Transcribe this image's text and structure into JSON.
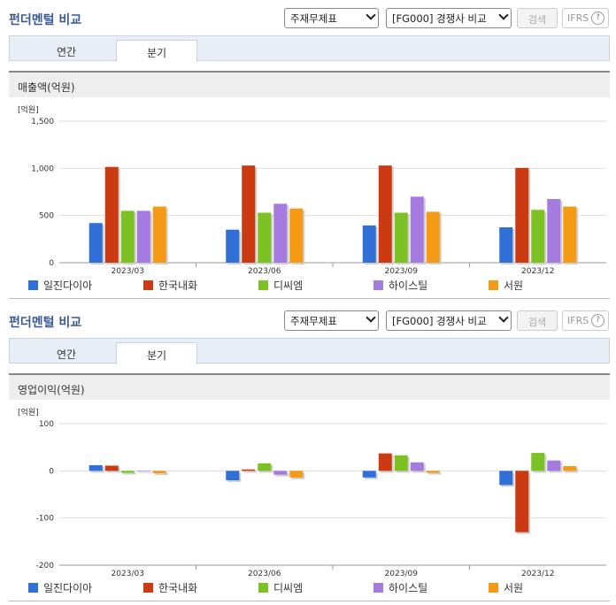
{
  "sections": [
    {
      "title": "펀더멘털 비교",
      "select1": "주재무제표",
      "select2": "[FG000] 경쟁사 비교",
      "search_label": "검색",
      "ifrs_label": "IFRS",
      "help_label": "?",
      "tabs": [
        "연간",
        "분기"
      ],
      "metric_title": "매출액(억원)"
    },
    {
      "title": "펀더멘털 비교",
      "select1": "주재무제표",
      "select2": "[FG000] 경쟁사 비교",
      "search_label": "검색",
      "ifrs_label": "IFRS",
      "help_label": "?",
      "tabs": [
        "연간",
        "분기"
      ],
      "metric_title": "영업이익(억원)"
    }
  ],
  "colors": {
    "series": [
      "#2f6fd6",
      "#cc3a12",
      "#7dc224",
      "#a67be0",
      "#f49a14"
    ],
    "grid": "#dddddd",
    "axis": "#999999"
  },
  "chart_data": [
    {
      "type": "bar",
      "ylabel": "[억원]",
      "categories": [
        "2023/03",
        "2023/06",
        "2023/09",
        "2023/12"
      ],
      "ylim": [
        0,
        1500
      ],
      "yticks": [
        0,
        500,
        1000,
        1500
      ],
      "ytick_labels": [
        "0",
        "500",
        "1,000",
        "1,500"
      ],
      "series": [
        {
          "name": "일진다이아",
          "values": [
            420,
            350,
            395,
            375
          ]
        },
        {
          "name": "한국내화",
          "values": [
            1015,
            1030,
            1030,
            1005
          ]
        },
        {
          "name": "디씨엠",
          "values": [
            550,
            530,
            530,
            560
          ]
        },
        {
          "name": "하이스틸",
          "values": [
            550,
            625,
            700,
            675
          ]
        },
        {
          "name": "서원",
          "values": [
            595,
            575,
            540,
            595
          ]
        }
      ]
    },
    {
      "type": "bar",
      "ylabel": "[억원]",
      "categories": [
        "2023/03",
        "2023/06",
        "2023/09",
        "2023/12"
      ],
      "ylim": [
        -200,
        100
      ],
      "yticks": [
        -200,
        -100,
        0,
        100
      ],
      "ytick_labels": [
        "-200",
        "-100",
        "0",
        "100"
      ],
      "series": [
        {
          "name": "일진다이아",
          "values": [
            12,
            -20,
            -14,
            -30
          ]
        },
        {
          "name": "한국내화",
          "values": [
            11,
            3,
            37,
            -130
          ]
        },
        {
          "name": "디씨엠",
          "values": [
            -4,
            16,
            33,
            38
          ]
        },
        {
          "name": "하이스틸",
          "values": [
            0,
            -8,
            18,
            22
          ]
        },
        {
          "name": "서원",
          "values": [
            -5,
            -14,
            -4,
            10
          ]
        }
      ]
    }
  ]
}
